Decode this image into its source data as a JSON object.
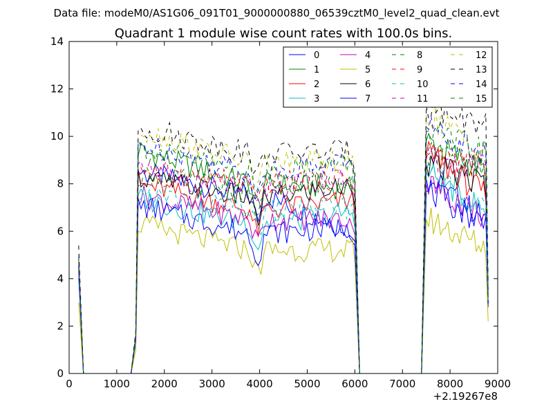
{
  "chart_data": {
    "type": "line",
    "suptitle": "Data file: modeM0/AS1G06_091T01_9000000880_06539cztM0_level2_quad_clean.evt",
    "title": "Quadrant 1 module wise count rates with 100.0s bins.",
    "xlabel": "",
    "ylabel": "",
    "x_offset_label": "+2.19267e8",
    "xlim": [
      0,
      9000
    ],
    "ylim": [
      0,
      14
    ],
    "xticks": [
      0,
      1000,
      2000,
      3000,
      4000,
      5000,
      6000,
      7000,
      8000,
      9000
    ],
    "yticks": [
      0,
      2,
      4,
      6,
      8,
      10,
      12,
      14
    ],
    "grid": false,
    "legend_position": "top-right",
    "segments": [
      {
        "start": 200,
        "end": 300,
        "step": 100
      },
      {
        "start": 1300,
        "end": 1400,
        "step": 100
      },
      {
        "start": 1450,
        "end": 5950,
        "step": 60
      },
      {
        "start": 6000,
        "end": 6100,
        "step": 100
      },
      {
        "start": 7400,
        "end": 7500,
        "step": 100
      },
      {
        "start": 7550,
        "end": 8750,
        "step": 50
      },
      {
        "start": 8800,
        "end": 8800,
        "step": 100
      }
    ],
    "series": [
      {
        "name": "0",
        "color": "#0000ff",
        "dashed": false,
        "rates": [
          4.5,
          0,
          0,
          1.5,
          8.5,
          7.5,
          6.0,
          0,
          0,
          2.5,
          8.2,
          6.5,
          3.0
        ]
      },
      {
        "name": "1",
        "color": "#008000",
        "dashed": false,
        "rates": [
          4.6,
          0,
          0,
          1.6,
          9.4,
          8.0,
          7.8,
          0,
          0,
          2.6,
          9.8,
          8.5,
          3.2
        ]
      },
      {
        "name": "2",
        "color": "#ff0000",
        "dashed": false,
        "rates": [
          4.2,
          0,
          0,
          1.4,
          8.0,
          6.9,
          7.3,
          0,
          0,
          2.4,
          9.2,
          7.5,
          2.9
        ]
      },
      {
        "name": "3",
        "color": "#00bfbf",
        "dashed": false,
        "rates": [
          4.0,
          0,
          0,
          1.3,
          7.4,
          6.3,
          6.8,
          0,
          0,
          2.3,
          8.5,
          6.8,
          2.8
        ]
      },
      {
        "name": "4",
        "color": "#bf00bf",
        "dashed": false,
        "rates": [
          4.1,
          0,
          0,
          1.4,
          7.5,
          6.5,
          6.5,
          0,
          0,
          2.3,
          8.0,
          6.6,
          2.8
        ]
      },
      {
        "name": "5",
        "color": "#bfbf00",
        "dashed": false,
        "rates": [
          3.0,
          0,
          0,
          1.0,
          6.3,
          5.2,
          5.2,
          0,
          0,
          1.8,
          6.5,
          5.3,
          2.2
        ]
      },
      {
        "name": "6",
        "color": "#000000",
        "dashed": false,
        "rates": [
          4.4,
          0,
          0,
          1.5,
          8.3,
          7.4,
          7.9,
          0,
          0,
          2.5,
          8.8,
          8.0,
          3.0
        ]
      },
      {
        "name": "7",
        "color": "#0000ff",
        "dashed": false,
        "rates": [
          4.3,
          0,
          0,
          1.4,
          7.1,
          5.9,
          6.2,
          0,
          0,
          2.3,
          7.7,
          6.3,
          2.9
        ]
      },
      {
        "name": "8",
        "color": "#008000",
        "dashed": true,
        "rates": [
          4.5,
          0,
          0,
          1.5,
          8.4,
          7.7,
          8.3,
          0,
          0,
          2.5,
          9.2,
          8.8,
          3.1
        ]
      },
      {
        "name": "9",
        "color": "#ff0000",
        "dashed": true,
        "rates": [
          4.7,
          0,
          0,
          1.6,
          8.6,
          8.0,
          8.3,
          0,
          0,
          2.6,
          9.3,
          8.7,
          3.2
        ]
      },
      {
        "name": "10",
        "color": "#00bfbf",
        "dashed": true,
        "rates": [
          4.2,
          0,
          0,
          1.4,
          7.6,
          6.9,
          7.0,
          0,
          0,
          2.3,
          8.4,
          7.2,
          2.9
        ]
      },
      {
        "name": "11",
        "color": "#bf00bf",
        "dashed": true,
        "rates": [
          4.6,
          0,
          0,
          1.5,
          8.5,
          7.8,
          8.2,
          0,
          0,
          2.5,
          9.0,
          8.6,
          3.1
        ]
      },
      {
        "name": "12",
        "color": "#bfbf00",
        "dashed": true,
        "rates": [
          5.0,
          0,
          0,
          1.7,
          10.3,
          8.9,
          8.9,
          0,
          0,
          2.8,
          10.9,
          9.3,
          3.5
        ]
      },
      {
        "name": "13",
        "color": "#000000",
        "dashed": true,
        "rates": [
          5.4,
          0,
          0,
          1.8,
          10.4,
          9.3,
          9.4,
          0,
          0,
          2.9,
          11.3,
          10.4,
          3.8
        ]
      },
      {
        "name": "14",
        "color": "#0000ff",
        "dashed": true,
        "rates": [
          4.9,
          0,
          0,
          1.6,
          9.7,
          8.5,
          9.0,
          0,
          0,
          2.7,
          10.4,
          9.3,
          3.4
        ]
      },
      {
        "name": "15",
        "color": "#008000",
        "dashed": true,
        "rates": [
          4.8,
          0,
          0,
          1.6,
          9.5,
          8.5,
          8.9,
          0,
          0,
          2.6,
          10.2,
          9.3,
          3.3
        ]
      }
    ]
  }
}
